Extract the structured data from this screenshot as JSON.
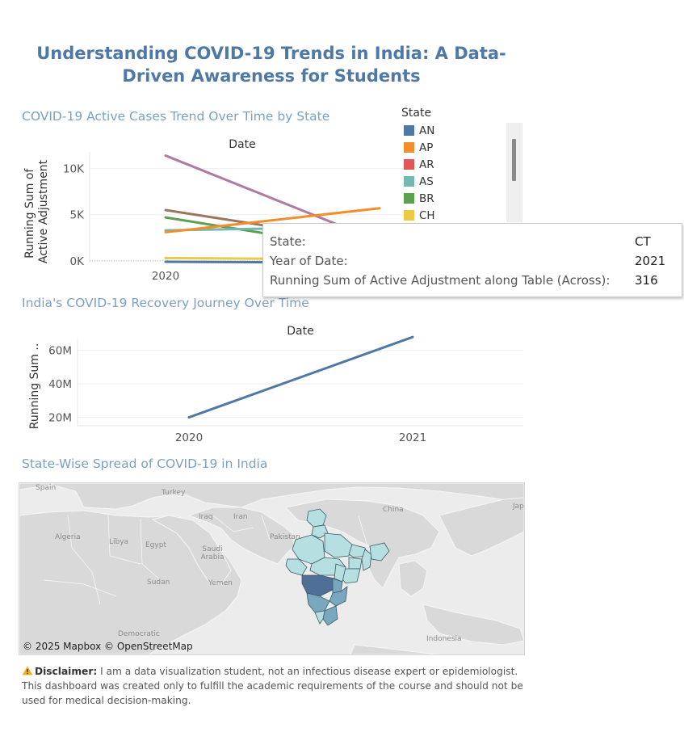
{
  "dashboard": {
    "title": "Understanding COVID-19 Trends in India: A Data-Driven Awareness for Students"
  },
  "chart_data": [
    {
      "type": "line",
      "title": "COVID-19 Active Cases Trend Over Time by State",
      "header": "Date",
      "ylabel": "Running Sum of Active Adjustment",
      "x": [
        "2020",
        "2021"
      ],
      "yticks": [
        0,
        5000,
        10000
      ],
      "ytick_labels": [
        "0K",
        "5K",
        "10K"
      ],
      "ylim": [
        -800,
        12500
      ],
      "grid": true,
      "legend": {
        "title": "State",
        "placement": "right",
        "entries": [
          {
            "name": "AN",
            "color": "#4e79a7"
          },
          {
            "name": "AP",
            "color": "#f28e2b"
          },
          {
            "name": "AR",
            "color": "#e15759"
          },
          {
            "name": "AS",
            "color": "#76b7b2"
          },
          {
            "name": "BR",
            "color": "#59a14f"
          },
          {
            "name": "CH",
            "color": "#edc948"
          }
        ]
      },
      "series": [
        {
          "color": "#b07aa1",
          "values": [
            11400,
            2100
          ]
        },
        {
          "color": "#9c755f",
          "values": [
            5500,
            1900
          ]
        },
        {
          "color": "#59a14f",
          "values": [
            4700,
            1000
          ]
        },
        {
          "color": "#76b7b2",
          "values": [
            3300,
            3700
          ]
        },
        {
          "color": "#f28e2b",
          "values": [
            3100,
            5700
          ]
        },
        {
          "color": "#edc948",
          "values": [
            300,
            150
          ]
        },
        {
          "color": "#4e79a7",
          "values": [
            -100,
            -200
          ]
        }
      ],
      "tooltip": {
        "rows": [
          {
            "label": "State:",
            "value": "CT"
          },
          {
            "label": "Year of Date:",
            "value": "2021"
          },
          {
            "label": "Running Sum of Active Adjustment along Table (Across):",
            "value": "316"
          }
        ]
      }
    },
    {
      "type": "line",
      "title": "India's COVID-19 Recovery Journey Over Time",
      "header": "Date",
      "ylabel": "Running Sum ..",
      "x": [
        "2020",
        "2021"
      ],
      "yticks": [
        20000000,
        40000000,
        60000000
      ],
      "ytick_labels": [
        "20M",
        "40M",
        "60M"
      ],
      "ylim": [
        0,
        70000000
      ],
      "grid": true,
      "series": [
        {
          "color": "#4e79a7",
          "values": [
            20000000,
            68000000
          ]
        }
      ]
    }
  ],
  "map": {
    "title": "State-Wise Spread of COVID-19 in India",
    "attribution": "© 2025 Mapbox © OpenStreetMap",
    "labels": [
      "Spain",
      "Turkey",
      "Iraq",
      "Iran",
      "Algeria",
      "Libya",
      "Egypt",
      "Saudi Arabia",
      "Pakistan",
      "China",
      "Jap",
      "Sudan",
      "Yemen",
      "Democratic",
      "Indonesia"
    ],
    "colors": {
      "low": "#b5dfe0",
      "mid": "#79a7c0",
      "high": "#4f6f99",
      "border": "#3d5a63"
    }
  },
  "disclaimer": {
    "icon": "warning-icon",
    "label": "Disclaimer:",
    "text": " I am a data visualization student, not an infectious disease expert or epidemiologist. This dashboard was created only to fulfill the academic requirements of the course and should not be used for medical decision-making."
  }
}
